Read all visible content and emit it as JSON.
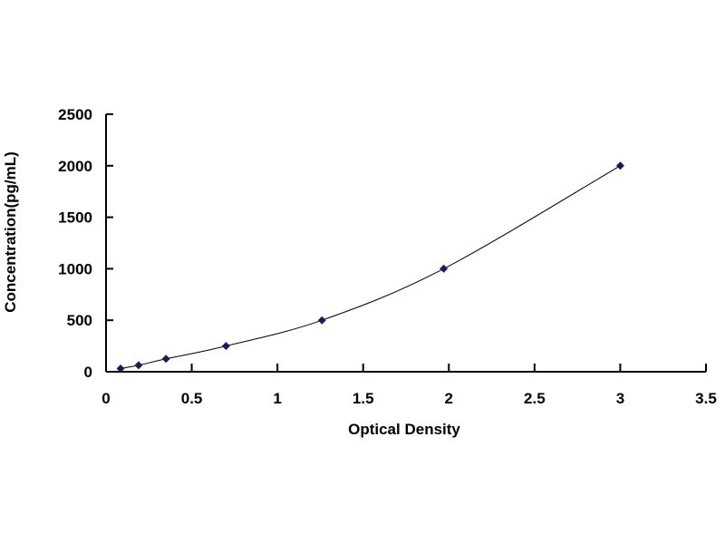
{
  "chart_data": {
    "type": "scatter",
    "title": "",
    "xlabel": "Optical Density",
    "ylabel": "Concentration(pg/mL)",
    "xlim": [
      0,
      3.5
    ],
    "ylim": [
      0,
      2500
    ],
    "x_ticks": [
      "0",
      "0.5",
      "1",
      "1.5",
      "2",
      "2.5",
      "3",
      "3.5"
    ],
    "y_ticks": [
      "0",
      "500",
      "1000",
      "1500",
      "2000",
      "2500"
    ],
    "grid": false,
    "legend": "none",
    "marker": "diamond",
    "fit_line": "smooth curve",
    "colors": {
      "marker": "#1a1a5e",
      "line": "#000000",
      "axis": "#000000"
    },
    "series": [
      {
        "x": [
          0.085,
          0.19,
          0.35,
          0.7,
          1.26,
          1.97,
          3.0
        ],
        "y": [
          31.25,
          62.5,
          125,
          250,
          500,
          1000,
          2000
        ]
      }
    ]
  }
}
